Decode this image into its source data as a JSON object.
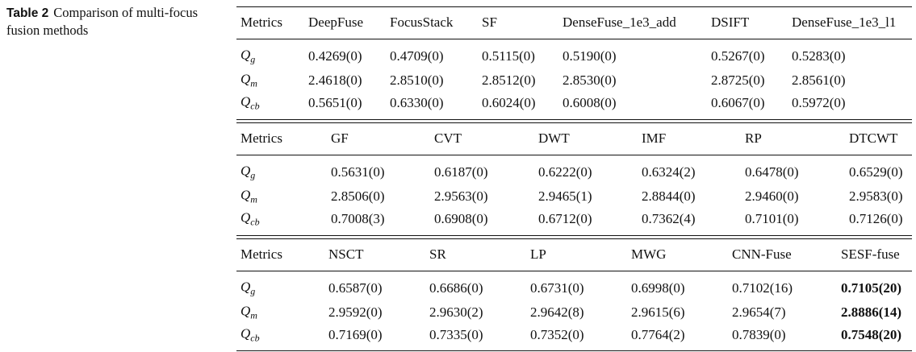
{
  "caption": {
    "label": "Table 2",
    "text": "Comparison of multi-focus fusion methods"
  },
  "tables": [
    {
      "header": [
        "Metrics",
        "DeepFuse",
        "FocusStack",
        "SF",
        "DenseFuse_1e3_add",
        "DSIFT",
        "DenseFuse_1e3_l1"
      ],
      "rows": [
        {
          "metric": {
            "symbol": "Q",
            "subscript": "g"
          },
          "values": [
            "0.4269(0)",
            "0.4709(0)",
            "0.5115(0)",
            "0.5190(0)",
            "0.5267(0)",
            "0.5283(0)"
          ]
        },
        {
          "metric": {
            "symbol": "Q",
            "subscript": "m"
          },
          "values": [
            "2.4618(0)",
            "2.8510(0)",
            "2.8512(0)",
            "2.8530(0)",
            "2.8725(0)",
            "2.8561(0)"
          ]
        },
        {
          "metric": {
            "symbol": "Q",
            "subscript": "cb"
          },
          "values": [
            "0.5651(0)",
            "0.6330(0)",
            "0.6024(0)",
            "0.6008(0)",
            "0.6067(0)",
            "0.5972(0)"
          ]
        }
      ]
    },
    {
      "header": [
        "Metrics",
        "GF",
        "CVT",
        "DWT",
        "IMF",
        "RP",
        "DTCWT"
      ],
      "rows": [
        {
          "metric": {
            "symbol": "Q",
            "subscript": "g"
          },
          "values": [
            "0.5631(0)",
            "0.6187(0)",
            "0.6222(0)",
            "0.6324(2)",
            "0.6478(0)",
            "0.6529(0)"
          ]
        },
        {
          "metric": {
            "symbol": "Q",
            "subscript": "m"
          },
          "values": [
            "2.8506(0)",
            "2.9563(0)",
            "2.9465(1)",
            "2.8844(0)",
            "2.9460(0)",
            "2.9583(0)"
          ]
        },
        {
          "metric": {
            "symbol": "Q",
            "subscript": "cb"
          },
          "values": [
            "0.7008(3)",
            "0.6908(0)",
            "0.6712(0)",
            "0.7362(4)",
            "0.7101(0)",
            "0.7126(0)"
          ]
        }
      ]
    },
    {
      "header": [
        "Metrics",
        "NSCT",
        "SR",
        "LP",
        "MWG",
        "CNN-Fuse",
        "SESF-fuse"
      ],
      "bold_column_index": 6,
      "rows": [
        {
          "metric": {
            "symbol": "Q",
            "subscript": "g"
          },
          "values": [
            "0.6587(0)",
            "0.6686(0)",
            "0.6731(0)",
            "0.6998(0)",
            "0.7102(16)",
            "0.7105(20)"
          ]
        },
        {
          "metric": {
            "symbol": "Q",
            "subscript": "m"
          },
          "values": [
            "2.9592(0)",
            "2.9630(2)",
            "2.9642(8)",
            "2.9615(6)",
            "2.9654(7)",
            "2.8886(14)"
          ]
        },
        {
          "metric": {
            "symbol": "Q",
            "subscript": "cb"
          },
          "values": [
            "0.7169(0)",
            "0.7335(0)",
            "0.7352(0)",
            "0.7764(2)",
            "0.7839(0)",
            "0.7548(20)"
          ]
        }
      ]
    }
  ]
}
